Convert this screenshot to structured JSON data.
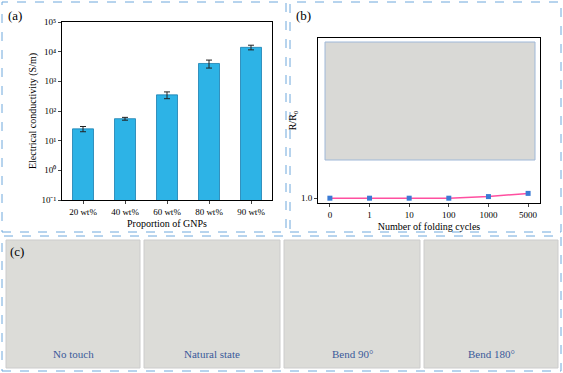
{
  "chart_data": [
    {
      "title": "(a)",
      "type": "bar",
      "x_label": "Proportion of GNPs",
      "y_label": "Electrical conductivity (S/m)",
      "categories": [
        "20 wt%",
        "40 wt%",
        "60 wt%",
        "80 wt%",
        "90 wt%"
      ],
      "values": [
        25,
        55,
        350,
        4000,
        14000
      ],
      "errors": [
        5,
        6,
        90,
        1200,
        2500
      ],
      "color": "#2db3e6",
      "log": "y",
      "ylim": [
        0.1,
        100000
      ],
      "yticks": [
        {
          "value": 0.1,
          "label": "10⁻¹"
        },
        {
          "value": 1,
          "label": "10⁰"
        },
        {
          "value": 10,
          "label": "10¹"
        },
        {
          "value": 100,
          "label": "10²"
        },
        {
          "value": 1000,
          "label": "10³"
        },
        {
          "value": 10000,
          "label": "10⁴"
        },
        {
          "value": 100000,
          "label": "10⁵"
        }
      ],
      "grid": false
    },
    {
      "title": "(b)",
      "type": "line",
      "x_label": "Number of folding cycles",
      "y_label": "R/R₀",
      "categories": [
        "0",
        "1",
        "10",
        "100",
        "1000",
        "5000"
      ],
      "values": [
        1,
        1,
        1,
        1,
        1.01,
        1.03
      ],
      "color": "#ff4fa0",
      "marker": "square",
      "ylim": [
        0.97,
        2.0
      ],
      "yticks": [
        {
          "value": 1,
          "label": "1.0"
        }
      ],
      "grid": false
    }
  ],
  "panel_c": {
    "title": "(c)",
    "captions": [
      "No touch",
      "Natural state",
      "Bend 90°",
      "Bend 180°"
    ]
  }
}
